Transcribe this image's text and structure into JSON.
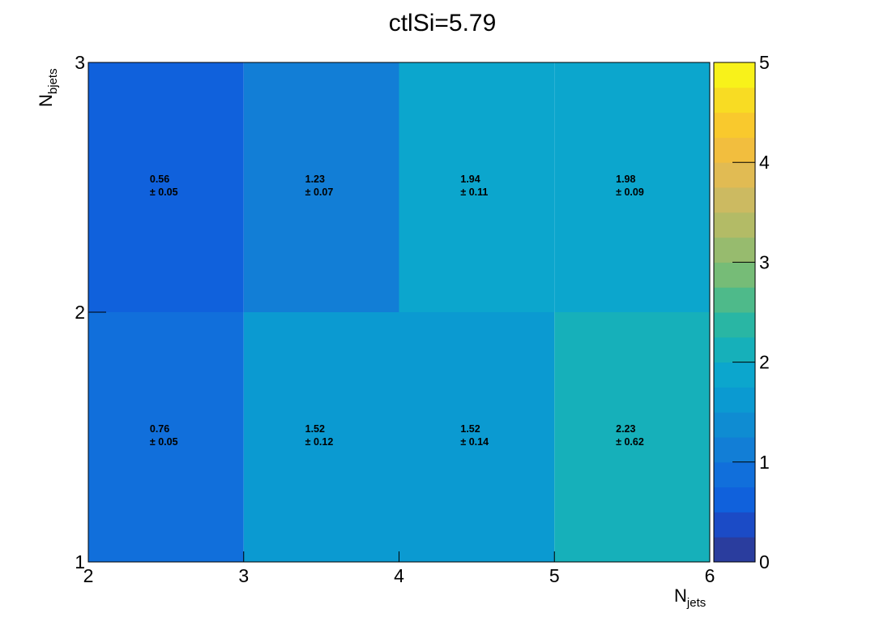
{
  "chart_data": {
    "type": "heatmap",
    "title": "ctlSi=5.79",
    "xlabel": "N",
    "xlabel_sub": "jets",
    "ylabel": "N",
    "ylabel_sub": "bjets",
    "x_edges": [
      2,
      3,
      4,
      5,
      6
    ],
    "y_edges": [
      1,
      2,
      3
    ],
    "x_ticks": [
      "2",
      "3",
      "4",
      "5",
      "6"
    ],
    "y_ticks": [
      "1",
      "2",
      "3"
    ],
    "xlim": [
      2,
      6
    ],
    "ylim": [
      1,
      3
    ],
    "zlim": [
      0,
      5
    ],
    "z_ticks": [
      "0",
      "1",
      "2",
      "3",
      "4",
      "5"
    ],
    "cells": [
      {
        "row": 0,
        "col": 0,
        "value": 0.76,
        "error": 0.05,
        "label": "0.76",
        "err_label": "± 0.05"
      },
      {
        "row": 0,
        "col": 1,
        "value": 1.52,
        "error": 0.12,
        "label": "1.52",
        "err_label": "± 0.12"
      },
      {
        "row": 0,
        "col": 2,
        "value": 1.52,
        "error": 0.14,
        "label": "1.52",
        "err_label": "± 0.14"
      },
      {
        "row": 0,
        "col": 3,
        "value": 2.23,
        "error": 0.62,
        "label": "2.23",
        "err_label": "± 0.62"
      },
      {
        "row": 1,
        "col": 0,
        "value": 0.56,
        "error": 0.05,
        "label": "0.56",
        "err_label": "± 0.05"
      },
      {
        "row": 1,
        "col": 1,
        "value": 1.23,
        "error": 0.07,
        "label": "1.23",
        "err_label": "± 0.07"
      },
      {
        "row": 1,
        "col": 2,
        "value": 1.94,
        "error": 0.11,
        "label": "1.94",
        "err_label": "± 0.11"
      },
      {
        "row": 1,
        "col": 3,
        "value": 1.98,
        "error": 0.09,
        "label": "1.98",
        "err_label": "± 0.09"
      }
    ],
    "palette": [
      "#2a3d9e",
      "#1b4bc6",
      "#1061dc",
      "#116fdb",
      "#127ed6",
      "#0f8cd2",
      "#0b9ad1",
      "#0ca6cd",
      "#16b0ba",
      "#29b6a4",
      "#4eba8a",
      "#76bc77",
      "#97bb6e",
      "#b3bb66",
      "#ccba61",
      "#e1bb53",
      "#f2be3e",
      "#f9c92d",
      "#f8dc23",
      "#f8f21a"
    ]
  }
}
